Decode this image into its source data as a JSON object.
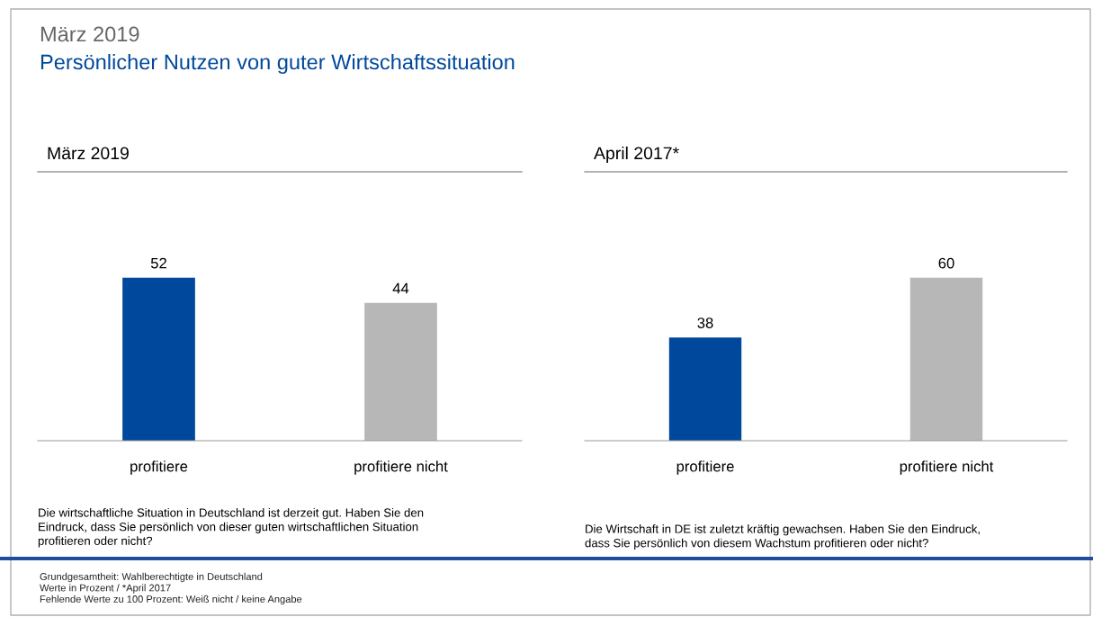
{
  "chart_data": [
    {
      "type": "other",
      "title": "März 2019",
      "subtitle": "Persönlicher Nutzen von guter Wirtschaftssituation",
      "annotations": [
        "Grundgesamtheit: Wahlberechtigte in Deutschland",
        "Werte in Prozent / *April 2017",
        "Fehlende Werte zu 100 Prozent: Weiß nicht / keine Angabe"
      ]
    },
    {
      "type": "bar",
      "title": "März 2019",
      "categories": [
        "profitiere",
        "profitiere nicht"
      ],
      "values": [
        52,
        44
      ],
      "colors": [
        "#00489b",
        "#b7b7b7"
      ],
      "data_labels": true,
      "annotations": [
        "Die wirtschaftliche Situation in Deutschland ist derzeit gut. Haben Sie den\nEindruck, dass Sie persönlich von dieser guten wirtschaftlichen Situation\nprofitieren oder nicht?"
      ]
    },
    {
      "type": "bar",
      "title": "April 2017*",
      "categories": [
        "profitiere",
        "profitiere nicht"
      ],
      "values": [
        38,
        60
      ],
      "colors": [
        "#00489b",
        "#b7b7b7"
      ],
      "data_labels": true,
      "annotations": [
        "Die Wirtschaft in DE ist zuletzt kräftig gewachsen. Haben Sie den Eindruck,\ndass Sie persönlich von diesem Wachstum profitieren oder nicht?"
      ]
    }
  ]
}
